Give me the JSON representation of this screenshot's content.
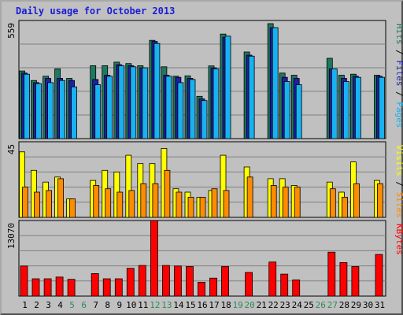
{
  "chart_data": {
    "type": "bar",
    "title": "Daily usage for October 2013",
    "categories": [
      "1",
      "2",
      "3",
      "4",
      "5",
      "6",
      "7",
      "8",
      "9",
      "10",
      "11",
      "12",
      "13",
      "14",
      "15",
      "16",
      "17",
      "18",
      "19",
      "20",
      "21",
      "22",
      "23",
      "24",
      "25",
      "26",
      "27",
      "28",
      "29",
      "30",
      "31"
    ],
    "weekend_days": [
      "5",
      "6",
      "12",
      "13",
      "19",
      "20",
      "26",
      "27"
    ],
    "panels": [
      {
        "id": "hits",
        "ymax_label": "559",
        "ymax": 559,
        "legend": [
          "Pages",
          "Files",
          "Hits"
        ],
        "series": [
          {
            "name": "Hits",
            "color": "#1d7a5e",
            "values": [
              320,
              275,
              295,
              330,
              285,
              null,
              345,
              345,
              362,
              355,
              345,
              465,
              340,
              295,
              297,
              200,
              344,
              495,
              null,
              410,
              null,
              544,
              310,
              300,
              null,
              null,
              380,
              300,
              305,
              null,
              300
            ]
          },
          {
            "name": "Files",
            "color": "#1e1ea8",
            "values": [
              310,
              265,
              285,
              285,
              275,
              null,
              280,
              300,
              350,
              345,
              335,
              460,
              300,
              290,
              285,
              188,
              335,
              480,
              null,
              395,
              null,
              525,
              290,
              285,
              null,
              null,
              330,
              285,
              295,
              null,
              295
            ]
          },
          {
            "name": "Pages",
            "color": "#18b2f0",
            "values": [
              305,
              260,
              265,
              275,
              245,
              null,
              255,
              295,
              345,
              340,
              335,
              450,
              295,
              265,
              280,
              180,
              330,
              485,
              null,
              390,
              null,
              525,
              270,
              255,
              null,
              null,
              330,
              270,
              290,
              null,
              290
            ]
          }
        ]
      },
      {
        "id": "visits",
        "ymax_label": "45",
        "ymax": 45,
        "legend": [
          "Sites",
          "Visits"
        ],
        "series": [
          {
            "name": "Visits",
            "color": "#ffff00",
            "values": [
              39,
              28,
              21,
              24,
              11,
              null,
              22,
              28,
              27,
              37,
              32,
              32,
              41,
              17,
              15,
              12,
              16,
              37,
              null,
              30,
              null,
              23,
              23,
              19,
              null,
              null,
              21,
              15,
              33,
              null,
              22
            ]
          },
          {
            "name": "Sites",
            "color": "#ff8c00",
            "values": [
              18,
              15,
              16,
              23,
              11,
              null,
              19,
              17,
              15,
              16,
              20,
              20,
              28,
              15,
              12,
              12,
              17,
              16,
              null,
              24,
              null,
              19,
              18,
              18,
              null,
              null,
              17,
              12,
              20,
              null,
              20
            ]
          }
        ]
      },
      {
        "id": "kbytes",
        "ymax_label": "13070",
        "ymax": 13070,
        "legend": [
          "KBytes"
        ],
        "series": [
          {
            "name": "KBytes",
            "color": "#ff0000",
            "values": [
              5200,
              3000,
              3000,
              3300,
              2900,
              null,
              3900,
              3000,
              3000,
              4800,
              5300,
              13070,
              5300,
              5200,
              5100,
              2400,
              3100,
              5100,
              null,
              4100,
              null,
              5900,
              3800,
              2800,
              null,
              null,
              7600,
              5800,
              5100,
              null,
              7200
            ]
          }
        ]
      }
    ]
  }
}
